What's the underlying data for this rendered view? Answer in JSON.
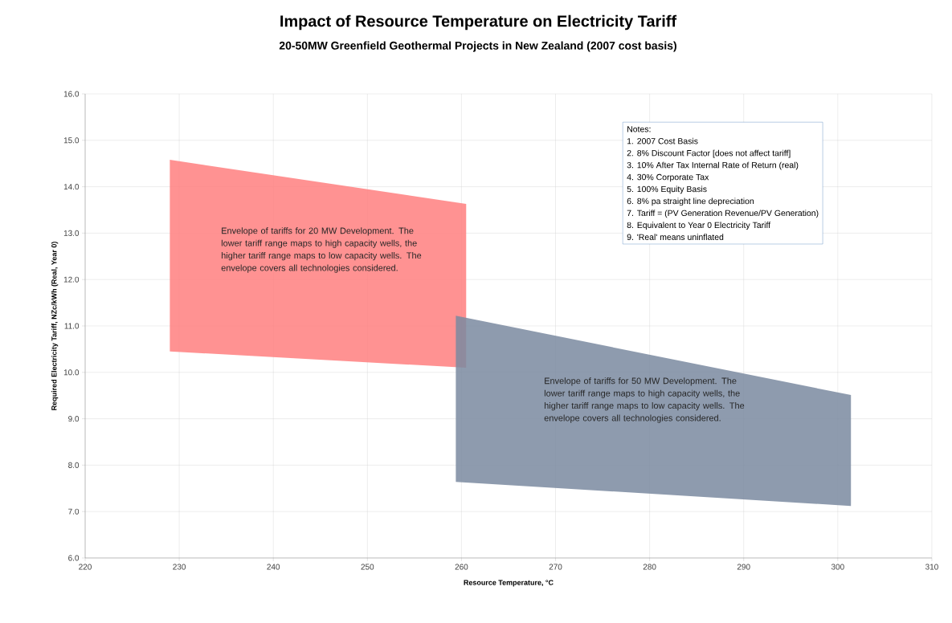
{
  "chart_data": {
    "type": "area",
    "title": "Impact of Resource Temperature on Electricity Tariff",
    "subtitle": "20-50MW Greenfield Geothermal Projects in New Zealand (2007 cost basis)",
    "xlabel": "Resource Temperature, °C",
    "ylabel": "Required Electricity Tariff, NZc/kWh (Real, Year 0)",
    "series": [
      {
        "color": "#ff7f7f",
        "x": [
          229.0,
          260.5,
          260.5,
          229.0
        ],
        "values": [
          14.58,
          13.63,
          10.1,
          10.45
        ]
      },
      {
        "color": "#7a8aa0",
        "x": [
          259.4,
          301.4,
          301.4,
          259.4
        ],
        "values": [
          11.22,
          9.51,
          7.12,
          7.64
        ]
      }
    ],
    "annotations": [
      "Envelope of tariffs for 20 MW Development.  The  lower tariff range maps to high capacity wells, the  higher tariff range maps to low capacity wells.  The envelope covers all technologies considered.",
      "Envelope of tariffs for 50 MW Development.  The  lower tariff range maps to high capacity wells, the  higher tariff range maps to low capacity wells.  The envelope covers all technologies considered.",
      "Notes:",
      "1. 2007 Cost Basis",
      "2. 8% Discount Factor [does not affect tariff]",
      "3. 10% After Tax Internal Rate of Return (real)",
      "4. 30% Corporate Tax",
      "5. 100% Equity Basis",
      "6. 8% pa straight line depreciation",
      "7. Tariff = (PV Generation Revenue/PV Generation)",
      "8. Equivalent to Year 0 Electricity Tariff",
      "9. 'Real' means uninflated"
    ],
    "xlim": [
      220,
      310
    ],
    "ylim": [
      6.0,
      16.0
    ],
    "xticks": [
      220,
      230,
      240,
      250,
      260,
      270,
      280,
      290,
      300,
      310
    ],
    "yticks": [
      {
        "value": 6,
        "label": "6.0"
      },
      {
        "value": 7,
        "label": "7.0"
      },
      {
        "value": 8,
        "label": "8.0"
      },
      {
        "value": 9,
        "label": "9.0"
      },
      {
        "value": 10,
        "label": "10.0"
      },
      {
        "value": 11,
        "label": "11.0"
      },
      {
        "value": 12,
        "label": "12.0"
      },
      {
        "value": 13,
        "label": "13.0"
      },
      {
        "value": 14,
        "label": "14.0"
      },
      {
        "value": 15,
        "label": "15.0"
      },
      {
        "value": 16,
        "label": "16.0"
      }
    ],
    "grid": true
  }
}
